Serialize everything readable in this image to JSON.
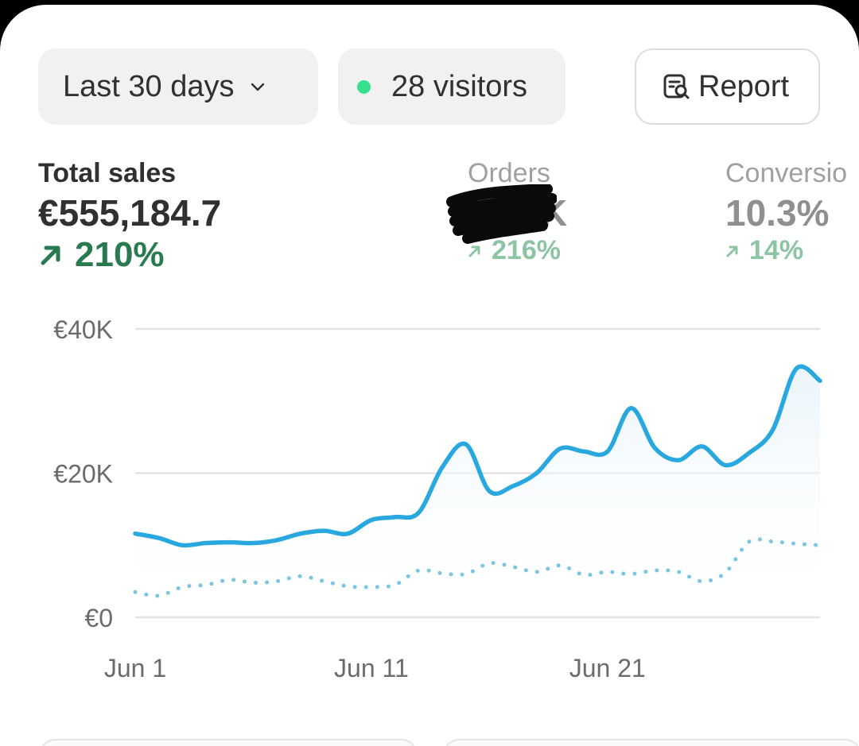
{
  "filters": {
    "date_range_label": "Last 30 days",
    "visitors_label": "28 visitors",
    "report_label": "Report"
  },
  "metrics": [
    {
      "label": "Total sales",
      "value": "€555,184.7",
      "change": "210%"
    },
    {
      "label": "Orders",
      "value": "K",
      "change": "216%"
    },
    {
      "label": "Conversio",
      "value": "10.3%",
      "change": "14%"
    }
  ],
  "colors": {
    "accent_line": "#29a8e0",
    "comparison_line": "#7cc6e2",
    "positive": "#2a7a4f",
    "live_dot": "#36e08f"
  },
  "chart_data": {
    "type": "line",
    "x": [
      "Jun 1",
      "Jun 2",
      "Jun 3",
      "Jun 4",
      "Jun 5",
      "Jun 6",
      "Jun 7",
      "Jun 8",
      "Jun 9",
      "Jun 10",
      "Jun 11",
      "Jun 12",
      "Jun 13",
      "Jun 14",
      "Jun 15",
      "Jun 16",
      "Jun 17",
      "Jun 18",
      "Jun 19",
      "Jun 20",
      "Jun 21",
      "Jun 22",
      "Jun 23",
      "Jun 24",
      "Jun 25",
      "Jun 26",
      "Jun 27",
      "Jun 28",
      "Jun 29",
      "Jun 30"
    ],
    "series": [
      {
        "values": [
          11600,
          11000,
          10000,
          10300,
          10400,
          10300,
          10700,
          11600,
          12000,
          11600,
          13500,
          13900,
          14500,
          20800,
          24000,
          17500,
          18200,
          20000,
          23400,
          23000,
          23000,
          29000,
          23500,
          21800,
          23700,
          21100,
          22800,
          26000,
          34500,
          32800
        ]
      },
      {
        "values": [
          3500,
          3000,
          4200,
          4500,
          5200,
          4800,
          5000,
          5700,
          5000,
          4300,
          4200,
          4500,
          6500,
          6100,
          6000,
          7500,
          7000,
          6300,
          7200,
          5900,
          6300,
          6000,
          6500,
          6300,
          5000,
          6200,
          10500,
          10500,
          10200,
          10000
        ]
      }
    ],
    "xticks": [
      "Jun 1",
      "Jun 11",
      "Jun 21"
    ],
    "yticks": [
      "€0",
      "€20K",
      "€40K"
    ],
    "ylim": [
      0,
      40000
    ],
    "grid": true
  }
}
